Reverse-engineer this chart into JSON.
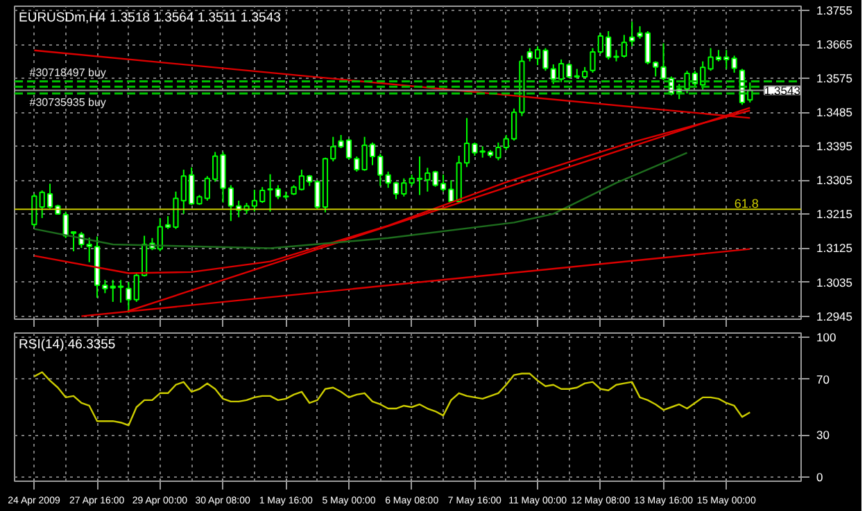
{
  "chart_data": [
    {
      "type": "candlestick",
      "title": "EURUSDm,H4  1.3518 1.3564 1.3511 1.3543",
      "color": "#00ff00",
      "tick_labels": "y",
      "grid": true,
      "categories": [
        null,
        null,
        null,
        null,
        null,
        null,
        null,
        null,
        null,
        null,
        null,
        null,
        null,
        null,
        null,
        null,
        null,
        null,
        null,
        null,
        null,
        null,
        null,
        null,
        null,
        null,
        null,
        null,
        null,
        null,
        null,
        null,
        null,
        null,
        null,
        null,
        null,
        null,
        null,
        null,
        null,
        null,
        null,
        null,
        null,
        null,
        null,
        null,
        null,
        null,
        null,
        null,
        null,
        null,
        null,
        null,
        null,
        null,
        null,
        null,
        null,
        null,
        null,
        null,
        null,
        null,
        null,
        null,
        null,
        null,
        null,
        null,
        null,
        null,
        null,
        null,
        null,
        null,
        null,
        null,
        null,
        null,
        null,
        null,
        null,
        null,
        null,
        null,
        null,
        null,
        null,
        null
      ],
      "ohlc": [
        [
          1.3188,
          1.3269,
          1.3181,
          1.3263
        ],
        [
          1.3234,
          1.3278,
          1.3205,
          1.3273
        ],
        [
          1.3269,
          1.3296,
          1.3228,
          1.3234
        ],
        [
          1.3237,
          1.324,
          1.3214,
          1.3216
        ],
        [
          1.3214,
          1.3222,
          1.3152,
          1.3158
        ],
        [
          1.3168,
          1.317,
          1.3117,
          1.3165
        ],
        [
          1.3162,
          1.3168,
          1.3126,
          1.3135
        ],
        [
          1.3135,
          1.3153,
          1.3088,
          1.313
        ],
        [
          1.3129,
          1.3156,
          1.2994,
          1.3027
        ],
        [
          1.3027,
          1.3041,
          1.3006,
          1.3018
        ],
        [
          1.3024,
          1.3041,
          1.2983,
          1.302
        ],
        [
          1.3022,
          1.3041,
          1.2981,
          1.3024
        ],
        [
          1.3018,
          1.3036,
          1.2954,
          1.2989
        ],
        [
          1.2989,
          1.3059,
          1.2983,
          1.3053
        ],
        [
          1.3053,
          1.3158,
          1.305,
          1.3135
        ],
        [
          1.3138,
          1.3152,
          1.312,
          1.3125
        ],
        [
          1.3123,
          1.3205,
          1.3117,
          1.3182
        ],
        [
          1.3187,
          1.321,
          1.3176,
          1.3181
        ],
        [
          1.3181,
          1.3275,
          1.3176,
          1.3257
        ],
        [
          1.3251,
          1.3333,
          1.3216,
          1.3316
        ],
        [
          1.3319,
          1.3339,
          1.324,
          1.3243
        ],
        [
          1.3243,
          1.3266,
          1.324,
          1.3261
        ],
        [
          1.3257,
          1.3316,
          1.3251,
          1.331
        ],
        [
          1.3308,
          1.338,
          1.3301,
          1.3369
        ],
        [
          1.3372,
          1.338,
          1.3246,
          1.3284
        ],
        [
          1.3284,
          1.3292,
          1.3197,
          1.3237
        ],
        [
          1.3237,
          1.3251,
          1.3207,
          1.3226
        ],
        [
          1.3226,
          1.3245,
          1.3216,
          1.3237
        ],
        [
          1.3237,
          1.328,
          1.3222,
          1.3251
        ],
        [
          1.3249,
          1.3287,
          1.3245,
          1.3278
        ],
        [
          1.328,
          1.3321,
          1.3222,
          1.3282
        ],
        [
          1.3282,
          1.3292,
          1.3255,
          1.3262
        ],
        [
          1.3261,
          1.3275,
          1.3255,
          1.3263
        ],
        [
          1.3269,
          1.3292,
          1.3266,
          1.3287
        ],
        [
          1.3281,
          1.3333,
          1.3278,
          1.3316
        ],
        [
          1.3316,
          1.3319,
          1.329,
          1.3301
        ],
        [
          1.3301,
          1.3305,
          1.3228,
          1.3234
        ],
        [
          1.3234,
          1.3365,
          1.322,
          1.3362
        ],
        [
          1.3362,
          1.342,
          1.3355,
          1.3394
        ],
        [
          1.3409,
          1.3425,
          1.339,
          1.3394
        ],
        [
          1.3411,
          1.3415,
          1.336,
          1.3365
        ],
        [
          1.3362,
          1.3368,
          1.3328,
          1.3333
        ],
        [
          1.3333,
          1.342,
          1.333,
          1.3398
        ],
        [
          1.34,
          1.3405,
          1.3345,
          1.3368
        ],
        [
          1.3368,
          1.3375,
          1.329,
          1.3319
        ],
        [
          1.3319,
          1.3328,
          1.3285,
          1.3298
        ],
        [
          1.3298,
          1.3301,
          1.3255,
          1.3269
        ],
        [
          1.3269,
          1.331,
          1.3262,
          1.3298
        ],
        [
          1.3298,
          1.332,
          1.329,
          1.331
        ],
        [
          1.3308,
          1.3368,
          1.3266,
          1.331
        ],
        [
          1.3306,
          1.3338,
          1.3275,
          1.3324
        ],
        [
          1.3327,
          1.333,
          1.3288,
          1.3292
        ],
        [
          1.3296,
          1.332,
          1.3275,
          1.3281
        ],
        [
          1.3281,
          1.3305,
          1.3245,
          1.3249
        ],
        [
          1.3249,
          1.337,
          1.3245,
          1.3351
        ],
        [
          1.3351,
          1.347,
          1.334,
          1.3403
        ],
        [
          1.3401,
          1.3405,
          1.337,
          1.3378
        ],
        [
          1.338,
          1.3395,
          1.3365,
          1.3382
        ],
        [
          1.338,
          1.3385,
          1.3365,
          1.3371
        ],
        [
          1.3365,
          1.3405,
          1.3358,
          1.3392
        ],
        [
          1.3392,
          1.3425,
          1.3385,
          1.3415
        ],
        [
          1.3415,
          1.3495,
          1.341,
          1.3485
        ],
        [
          1.3485,
          1.3635,
          1.3475,
          1.362
        ],
        [
          1.3645,
          1.3655,
          1.362,
          1.3629
        ],
        [
          1.3628,
          1.366,
          1.361,
          1.3651
        ],
        [
          1.3649,
          1.3655,
          1.3595,
          1.3602
        ],
        [
          1.36,
          1.3612,
          1.356,
          1.3573
        ],
        [
          1.3573,
          1.3625,
          1.3565,
          1.3614
        ],
        [
          1.3611,
          1.3615,
          1.3575,
          1.3579
        ],
        [
          1.3579,
          1.36,
          1.3575,
          1.3581
        ],
        [
          1.3579,
          1.3605,
          1.3575,
          1.3593
        ],
        [
          1.3596,
          1.3655,
          1.359,
          1.3645
        ],
        [
          1.3645,
          1.3695,
          1.364,
          1.3687
        ],
        [
          1.3684,
          1.37,
          1.3625,
          1.3631
        ],
        [
          1.3631,
          1.365,
          1.362,
          1.3633
        ],
        [
          1.3634,
          1.369,
          1.363,
          1.367
        ],
        [
          1.3684,
          1.3725,
          1.366,
          1.3674
        ],
        [
          1.3695,
          1.3713,
          1.368,
          1.3686
        ],
        [
          1.3695,
          1.37,
          1.3612,
          1.3617
        ],
        [
          1.3617,
          1.362,
          1.358,
          1.3605
        ],
        [
          1.3605,
          1.3668,
          1.357,
          1.3575
        ],
        [
          1.3575,
          1.358,
          1.353,
          1.3534
        ],
        [
          1.3547,
          1.356,
          1.352,
          1.3538
        ],
        [
          1.3547,
          1.3595,
          1.3535,
          1.3588
        ],
        [
          1.3588,
          1.3595,
          1.3555,
          1.3561
        ],
        [
          1.3558,
          1.362,
          1.3545,
          1.3604
        ],
        [
          1.36,
          1.3655,
          1.3595,
          1.3631
        ],
        [
          1.3631,
          1.365,
          1.362,
          1.3625
        ],
        [
          1.3631,
          1.365,
          1.36,
          1.3625
        ],
        [
          1.3628,
          1.3635,
          1.359,
          1.3602
        ],
        [
          1.3596,
          1.36,
          1.3505,
          1.3511
        ],
        [
          1.3518,
          1.3564,
          1.3511,
          1.3543
        ]
      ],
      "series": [
        {
          "type": "line",
          "color": "#dd0000",
          "values": [
            1.3649,
            null,
            null,
            null,
            null,
            null,
            null,
            null,
            null,
            null,
            null,
            null,
            null,
            null,
            null,
            null,
            null,
            null,
            null,
            null,
            null,
            null,
            null,
            null,
            null,
            null,
            null,
            null,
            null,
            null,
            null,
            null,
            null,
            null,
            null,
            null,
            null,
            null,
            null,
            null,
            null,
            null,
            null,
            null,
            null,
            null,
            null,
            null,
            null,
            null,
            null,
            null,
            null,
            null,
            null,
            null,
            null,
            null,
            null,
            null,
            null,
            null,
            null,
            null,
            null,
            null,
            null,
            null,
            null,
            null,
            null,
            null,
            null,
            null,
            null,
            null,
            null,
            null,
            null,
            null,
            null,
            null,
            null,
            null,
            null,
            null,
            null,
            null,
            null,
            null,
            null,
            1.347
          ]
        },
        {
          "type": "line",
          "color": "#dd0000",
          "values": [
            null,
            null,
            null,
            null,
            null,
            null,
            1.2945,
            null,
            null,
            null,
            null,
            null,
            null,
            null,
            null,
            null,
            null,
            null,
            null,
            null,
            null,
            null,
            null,
            null,
            null,
            null,
            null,
            null,
            null,
            null,
            null,
            null,
            null,
            null,
            null,
            null,
            null,
            null,
            null,
            null,
            null,
            null,
            null,
            null,
            null,
            null,
            null,
            null,
            null,
            null,
            null,
            null,
            null,
            null,
            null,
            null,
            null,
            null,
            null,
            null,
            null,
            null,
            null,
            null,
            null,
            null,
            null,
            null,
            null,
            null,
            null,
            null,
            null,
            null,
            null,
            null,
            null,
            null,
            null,
            null,
            null,
            null,
            null,
            null,
            null,
            null,
            null,
            null,
            null,
            null,
            null,
            1.3123
          ]
        },
        {
          "type": "line",
          "color": "#dd0000",
          "values": [
            1.3105,
            null,
            null,
            null,
            null,
            null,
            null,
            null,
            null,
            null,
            null,
            null,
            1.3059,
            null,
            null,
            null,
            null,
            null,
            null,
            null,
            1.3062,
            null,
            null,
            null,
            null,
            null,
            null,
            null,
            null,
            null,
            1.309,
            null,
            null,
            null,
            null,
            null,
            null,
            null,
            null,
            null,
            null,
            null,
            null,
            null,
            null,
            1.3185,
            null,
            null,
            null,
            null,
            null,
            null,
            null,
            null,
            null,
            null,
            null,
            null,
            null,
            null,
            1.33,
            null,
            null,
            null,
            null,
            null,
            null,
            null,
            null,
            null,
            null,
            null,
            null,
            null,
            null,
            1.34,
            null,
            null,
            null,
            null,
            null,
            null,
            null,
            null,
            null,
            null,
            null,
            null,
            null,
            null,
            null,
            1.349
          ]
        },
        {
          "type": "line",
          "color": "#dd0000",
          "values": [
            null,
            null,
            null,
            null,
            null,
            null,
            null,
            null,
            null,
            null,
            null,
            null,
            1.2959,
            null,
            null,
            null,
            null,
            null,
            null,
            null,
            null,
            null,
            null,
            null,
            null,
            null,
            null,
            null,
            null,
            null,
            null,
            null,
            null,
            null,
            null,
            null,
            null,
            null,
            null,
            null,
            null,
            null,
            null,
            null,
            null,
            null,
            null,
            null,
            null,
            null,
            null,
            null,
            null,
            null,
            null,
            null,
            null,
            null,
            null,
            null,
            null,
            null,
            null,
            null,
            null,
            null,
            null,
            null,
            null,
            null,
            null,
            null,
            null,
            null,
            null,
            null,
            null,
            null,
            null,
            null,
            null,
            null,
            null,
            null,
            null,
            null,
            null,
            null,
            null,
            null,
            null,
            1.3497
          ]
        },
        {
          "type": "line",
          "color": "#1e6e1e",
          "values": [
            1.3176,
            null,
            null,
            null,
            null,
            null,
            null,
            null,
            null,
            null,
            1.3135,
            null,
            null,
            null,
            null,
            null,
            null,
            null,
            null,
            null,
            null,
            null,
            null,
            null,
            null,
            null,
            null,
            null,
            null,
            null,
            1.3125,
            null,
            null,
            null,
            null,
            null,
            null,
            null,
            null,
            null,
            null,
            null,
            null,
            null,
            null,
            1.3152,
            null,
            null,
            null,
            null,
            null,
            null,
            null,
            null,
            null,
            null,
            null,
            null,
            null,
            null,
            null,
            1.3193,
            null,
            null,
            null,
            null,
            1.3216,
            null,
            null,
            null,
            null,
            null,
            null,
            null,
            1.3298,
            null,
            null,
            null,
            null,
            null,
            null,
            null,
            null,
            1.3378,
            null,
            null,
            null,
            null,
            null,
            null,
            null,
            null
          ]
        }
      ],
      "annotations": [
        "61.8"
      ],
      "ylim": [
        1.2937,
        1.3766
      ],
      "yticks": [
        1.2945,
        1.3035,
        1.3125,
        1.3215,
        1.3305,
        1.3395,
        1.3485,
        1.3575,
        1.3665,
        1.3755
      ],
      "ref_lines": [
        {
          "axis": "y",
          "value": 1.3228,
          "label": null,
          "color": "#cccc00",
          "line_style": "solid"
        },
        {
          "axis": "y",
          "value": 1.3567,
          "label": "#30718497 buy",
          "color": "#00c000",
          "line_style": "dashed"
        },
        {
          "axis": "y",
          "value": 1.3553,
          "label": null,
          "color": "#00c000",
          "line_style": "dashed"
        },
        {
          "axis": "y",
          "value": 1.3535,
          "label": "#30735935 buy",
          "color": "#00c000",
          "line_style": "dashed"
        },
        {
          "axis": "y",
          "value": 1.3543,
          "label": "1.3543",
          "color": "#9a9a9a",
          "line_style": "solid"
        }
      ]
    },
    {
      "type": "line",
      "title": "RSI(14) 46.3355",
      "color": "#cccc00",
      "grid": true,
      "categories": [
        "24 Apr 2009",
        null,
        null,
        null,
        null,
        null,
        null,
        null,
        "27 Apr 16:00",
        null,
        null,
        null,
        null,
        null,
        null,
        null,
        "29 Apr 00:00",
        null,
        null,
        null,
        null,
        null,
        null,
        null,
        "30 Apr 08:00",
        null,
        null,
        null,
        null,
        null,
        null,
        null,
        "1 May 16:00",
        null,
        null,
        null,
        null,
        null,
        null,
        null,
        "5 May 00:00",
        null,
        null,
        null,
        null,
        null,
        null,
        null,
        "6 May 08:00",
        null,
        null,
        null,
        null,
        null,
        null,
        null,
        "7 May 16:00",
        null,
        null,
        null,
        null,
        null,
        null,
        null,
        "11 May 00:00",
        null,
        null,
        null,
        null,
        null,
        null,
        null,
        "12 May 08:00",
        null,
        null,
        null,
        null,
        null,
        null,
        null,
        "13 May 16:00",
        null,
        null,
        null,
        null,
        null,
        null,
        null,
        "15 May 00:00",
        null,
        null,
        null
      ],
      "values": [
        72,
        75,
        69,
        64,
        57,
        58,
        53,
        51,
        40,
        40,
        40,
        39,
        37,
        50,
        55,
        55,
        60,
        60,
        66,
        68,
        61,
        63,
        67,
        63,
        56,
        54,
        54,
        55,
        57,
        58,
        58,
        55,
        56,
        59,
        61,
        53,
        55,
        63,
        64,
        61,
        57,
        59,
        60,
        54,
        52,
        49,
        49,
        51,
        50,
        52,
        49,
        47,
        44,
        55,
        60,
        58,
        57,
        56,
        58,
        60,
        66,
        73,
        74,
        74,
        69,
        65,
        66,
        63,
        63,
        64,
        67,
        68,
        63,
        62,
        66,
        67,
        68,
        57,
        55,
        52,
        48,
        50,
        52,
        49,
        53,
        57,
        57,
        56,
        53,
        51,
        43,
        46.3
      ],
      "ylim": [
        -3,
        103
      ],
      "yticks": [
        0,
        30,
        70,
        100
      ]
    }
  ]
}
